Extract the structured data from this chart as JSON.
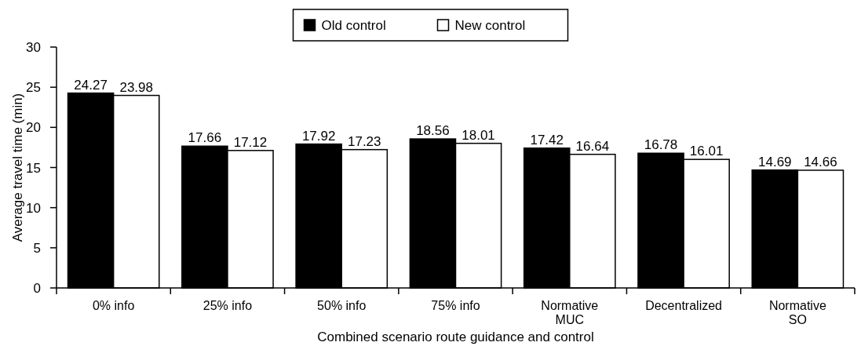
{
  "chart_data": {
    "type": "bar",
    "xlabel": "Combined scenario route guidance and control",
    "ylabel": "Average travel time (min)",
    "categories": [
      "0% info",
      "25% info",
      "50% info",
      "75% info",
      "Normative MUC",
      "Decentralized",
      "Normative SO"
    ],
    "series": [
      {
        "name": "Old control",
        "color": "#000000",
        "values": [
          24.27,
          17.66,
          17.92,
          18.56,
          17.42,
          16.78,
          14.69
        ]
      },
      {
        "name": "New control",
        "color": "#ffffff",
        "values": [
          23.98,
          17.12,
          17.23,
          18.01,
          16.64,
          16.01,
          14.66
        ]
      }
    ],
    "ylim": [
      0,
      30
    ],
    "yticks": [
      0,
      5,
      10,
      15,
      20,
      25,
      30
    ],
    "data_labels": true,
    "legend": "top",
    "grid": false
  }
}
